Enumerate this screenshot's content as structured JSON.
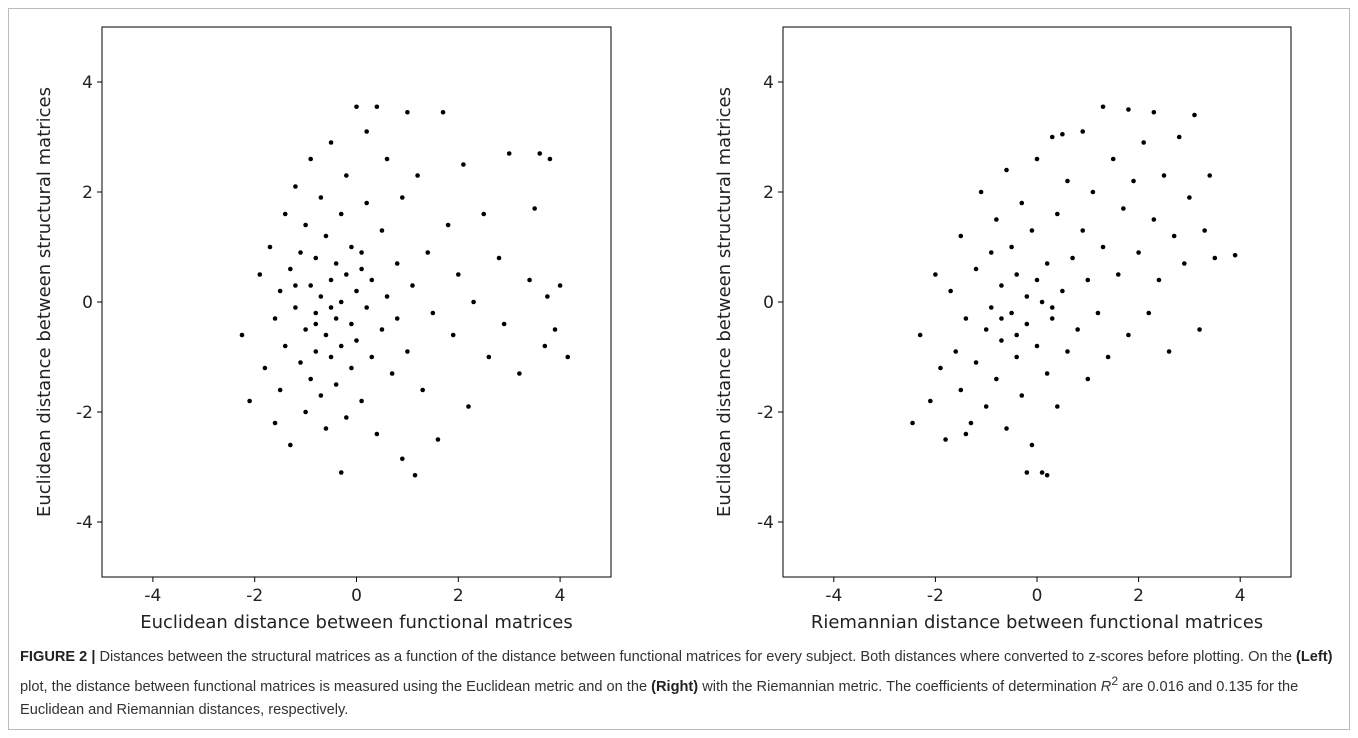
{
  "chart_data": [
    {
      "type": "scatter",
      "xlabel": "Euclidean distance between functional matrices",
      "ylabel": "Euclidean distance between structural matrices",
      "color": "#000000",
      "xlim": [
        -5,
        5
      ],
      "ylim": [
        -5,
        5
      ],
      "xticks": [
        -4,
        -2,
        0,
        2,
        4
      ],
      "yticks": [
        -4,
        -2,
        0,
        2,
        4
      ],
      "points": [
        [
          -2.25,
          -0.6
        ],
        [
          -2.1,
          -1.8
        ],
        [
          -1.9,
          0.5
        ],
        [
          -1.8,
          -1.2
        ],
        [
          -1.7,
          1.0
        ],
        [
          -1.6,
          -0.3
        ],
        [
          -1.6,
          -2.2
        ],
        [
          -1.5,
          0.2
        ],
        [
          -1.5,
          -1.6
        ],
        [
          -1.4,
          1.6
        ],
        [
          -1.4,
          -0.8
        ],
        [
          -1.3,
          0.6
        ],
        [
          -1.3,
          -2.6
        ],
        [
          -1.2,
          -0.1
        ],
        [
          -1.2,
          2.1
        ],
        [
          -1.1,
          -1.1
        ],
        [
          -1.1,
          0.9
        ],
        [
          -1.0,
          -0.5
        ],
        [
          -1.0,
          1.4
        ],
        [
          -1.0,
          -2.0
        ],
        [
          -0.9,
          0.3
        ],
        [
          -0.9,
          -1.4
        ],
        [
          -0.9,
          2.6
        ],
        [
          -0.8,
          -0.2
        ],
        [
          -0.8,
          0.8
        ],
        [
          -0.8,
          -0.9
        ],
        [
          -0.7,
          1.9
        ],
        [
          -0.7,
          -1.7
        ],
        [
          -0.7,
          0.1
        ],
        [
          -0.6,
          -0.6
        ],
        [
          -0.6,
          1.2
        ],
        [
          -0.6,
          -2.3
        ],
        [
          -0.5,
          0.4
        ],
        [
          -0.5,
          -1.0
        ],
        [
          -0.5,
          2.9
        ],
        [
          -0.4,
          -0.3
        ],
        [
          -0.4,
          0.7
        ],
        [
          -0.4,
          -1.5
        ],
        [
          -0.3,
          0.0
        ],
        [
          -0.3,
          1.6
        ],
        [
          -0.3,
          -0.8
        ],
        [
          -0.2,
          -2.1
        ],
        [
          -0.2,
          0.5
        ],
        [
          -0.2,
          2.3
        ],
        [
          -0.1,
          -0.4
        ],
        [
          -0.1,
          1.0
        ],
        [
          -0.1,
          -1.2
        ],
        [
          0.0,
          0.2
        ],
        [
          0.0,
          -0.7
        ],
        [
          0.0,
          3.55
        ],
        [
          0.1,
          -1.8
        ],
        [
          0.1,
          0.9
        ],
        [
          0.2,
          -0.1
        ],
        [
          0.2,
          1.8
        ],
        [
          0.3,
          -1.0
        ],
        [
          0.3,
          0.4
        ],
        [
          0.4,
          3.55
        ],
        [
          0.4,
          -2.4
        ],
        [
          0.5,
          -0.5
        ],
        [
          0.5,
          1.3
        ],
        [
          0.6,
          0.1
        ],
        [
          0.6,
          2.6
        ],
        [
          0.7,
          -1.3
        ],
        [
          0.8,
          0.7
        ],
        [
          0.8,
          -0.3
        ],
        [
          0.9,
          -2.85
        ],
        [
          0.9,
          1.9
        ],
        [
          1.0,
          3.45
        ],
        [
          1.0,
          -0.9
        ],
        [
          1.1,
          0.3
        ],
        [
          1.15,
          -3.15
        ],
        [
          1.2,
          2.3
        ],
        [
          1.3,
          -1.6
        ],
        [
          1.4,
          0.9
        ],
        [
          1.5,
          -0.2
        ],
        [
          1.6,
          -2.5
        ],
        [
          1.7,
          3.45
        ],
        [
          1.8,
          1.4
        ],
        [
          1.9,
          -0.6
        ],
        [
          2.0,
          0.5
        ],
        [
          2.1,
          2.5
        ],
        [
          2.2,
          -1.9
        ],
        [
          2.3,
          0.0
        ],
        [
          2.5,
          1.6
        ],
        [
          2.6,
          -1.0
        ],
        [
          2.8,
          0.8
        ],
        [
          2.9,
          -0.4
        ],
        [
          3.0,
          2.7
        ],
        [
          3.2,
          -1.3
        ],
        [
          3.4,
          0.4
        ],
        [
          3.5,
          1.7
        ],
        [
          3.6,
          2.7
        ],
        [
          3.7,
          -0.8
        ],
        [
          3.75,
          0.1
        ],
        [
          3.8,
          2.6
        ],
        [
          3.9,
          -0.5
        ],
        [
          4.0,
          0.3
        ],
        [
          4.15,
          -1.0
        ],
        [
          -0.3,
          -3.1
        ],
        [
          0.2,
          3.1
        ],
        [
          -0.8,
          -0.4
        ],
        [
          -0.5,
          -0.1
        ],
        [
          -1.2,
          0.3
        ],
        [
          0.1,
          0.6
        ]
      ]
    },
    {
      "type": "scatter",
      "xlabel": "Riemannian distance between functional matrices",
      "ylabel": "Euclidean distance between structural matrices",
      "color": "#000000",
      "xlim": [
        -5,
        5
      ],
      "ylim": [
        -5,
        5
      ],
      "xticks": [
        -4,
        -2,
        0,
        2,
        4
      ],
      "yticks": [
        -4,
        -2,
        0,
        2,
        4
      ],
      "points": [
        [
          -2.45,
          -2.2
        ],
        [
          -2.3,
          -0.6
        ],
        [
          -2.1,
          -1.8
        ],
        [
          -2.0,
          0.5
        ],
        [
          -1.9,
          -1.2
        ],
        [
          -1.8,
          -2.5
        ],
        [
          -1.7,
          0.2
        ],
        [
          -1.6,
          -0.9
        ],
        [
          -1.5,
          -1.6
        ],
        [
          -1.5,
          1.2
        ],
        [
          -1.4,
          -0.3
        ],
        [
          -1.3,
          -2.2
        ],
        [
          -1.2,
          0.6
        ],
        [
          -1.2,
          -1.1
        ],
        [
          -1.1,
          2.0
        ],
        [
          -1.0,
          -0.5
        ],
        [
          -1.0,
          -1.9
        ],
        [
          -0.9,
          0.9
        ],
        [
          -0.9,
          -0.1
        ],
        [
          -0.8,
          -1.4
        ],
        [
          -0.8,
          1.5
        ],
        [
          -0.7,
          -0.7
        ],
        [
          -0.7,
          0.3
        ],
        [
          -0.6,
          -2.3
        ],
        [
          -0.6,
          2.4
        ],
        [
          -0.5,
          -0.2
        ],
        [
          -0.5,
          1.0
        ],
        [
          -0.4,
          -1.0
        ],
        [
          -0.4,
          0.5
        ],
        [
          -0.3,
          -1.7
        ],
        [
          -0.3,
          1.8
        ],
        [
          -0.2,
          -0.4
        ],
        [
          -0.2,
          0.1
        ],
        [
          -0.1,
          -2.6
        ],
        [
          -0.1,
          1.3
        ],
        [
          0.0,
          -0.8
        ],
        [
          0.0,
          2.6
        ],
        [
          0.1,
          0.0
        ],
        [
          0.1,
          -3.1
        ],
        [
          0.2,
          -1.3
        ],
        [
          0.2,
          0.7
        ],
        [
          0.3,
          -0.3
        ],
        [
          0.3,
          3.0
        ],
        [
          0.4,
          1.6
        ],
        [
          0.4,
          -1.9
        ],
        [
          0.5,
          0.2
        ],
        [
          0.6,
          -0.9
        ],
        [
          0.6,
          2.2
        ],
        [
          0.7,
          0.8
        ],
        [
          0.8,
          -0.5
        ],
        [
          0.9,
          1.3
        ],
        [
          0.9,
          3.1
        ],
        [
          1.0,
          -1.4
        ],
        [
          1.0,
          0.4
        ],
        [
          1.1,
          2.0
        ],
        [
          1.2,
          -0.2
        ],
        [
          1.3,
          3.55
        ],
        [
          1.3,
          1.0
        ],
        [
          1.4,
          -1.0
        ],
        [
          1.5,
          2.6
        ],
        [
          1.6,
          0.5
        ],
        [
          1.7,
          1.7
        ],
        [
          1.8,
          -0.6
        ],
        [
          1.8,
          3.5
        ],
        [
          1.9,
          2.2
        ],
        [
          2.0,
          0.9
        ],
        [
          2.1,
          2.9
        ],
        [
          2.2,
          -0.2
        ],
        [
          2.3,
          1.5
        ],
        [
          2.3,
          3.45
        ],
        [
          2.4,
          0.4
        ],
        [
          2.5,
          2.3
        ],
        [
          2.6,
          -0.9
        ],
        [
          2.7,
          1.2
        ],
        [
          2.8,
          3.0
        ],
        [
          2.9,
          0.7
        ],
        [
          3.0,
          1.9
        ],
        [
          3.1,
          3.4
        ],
        [
          3.2,
          -0.5
        ],
        [
          3.3,
          1.3
        ],
        [
          3.4,
          2.3
        ],
        [
          3.5,
          0.8
        ],
        [
          3.9,
          0.85
        ],
        [
          0.2,
          -3.15
        ],
        [
          -0.2,
          -3.1
        ],
        [
          0.5,
          3.05
        ],
        [
          -1.4,
          -2.4
        ],
        [
          -0.4,
          -0.6
        ],
        [
          0.0,
          0.4
        ],
        [
          0.3,
          -0.1
        ],
        [
          -0.7,
          -0.3
        ]
      ]
    }
  ],
  "caption": [
    "FIGURE 2 |",
    " Distances between the structural matrices as a function of the distance between functional matrices for every subject. Both distances where converted to z-scores before plotting. On the ",
    "(Left)",
    " plot, the distance between functional matrices is measured using the Euclidean metric and on the ",
    "(Right)",
    " with the Riemannian metric. The coefficients of determination ",
    "R",
    "2",
    " are 0.016 and 0.135 for the Euclidean and Riemannian distances, respectively."
  ]
}
